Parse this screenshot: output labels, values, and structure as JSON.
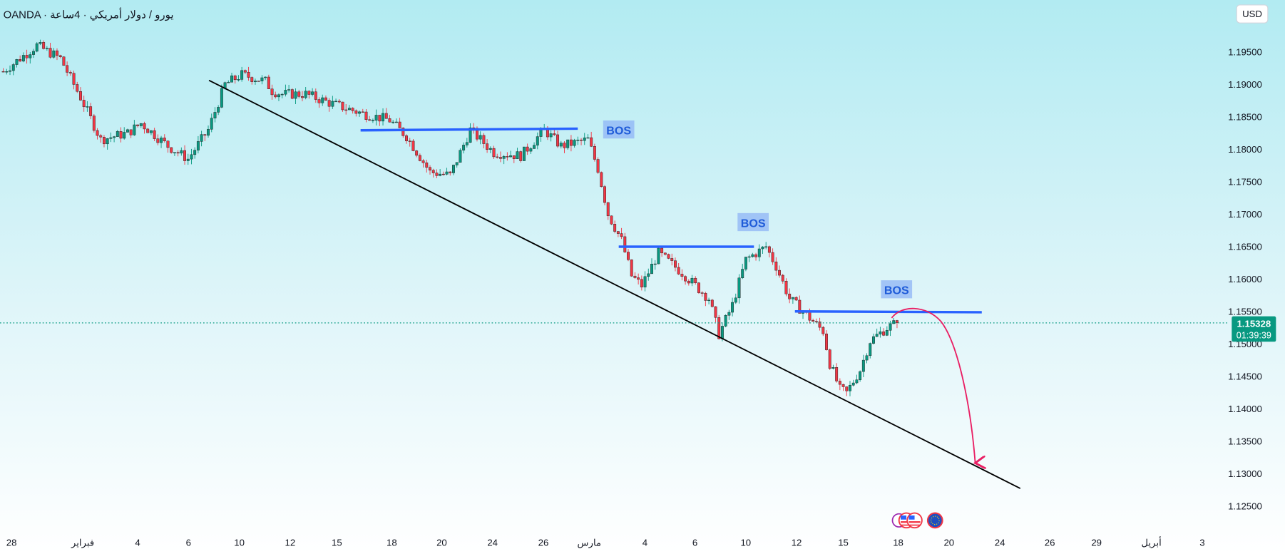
{
  "header": {
    "symbol_title": "OANDA · يورو / دولار أمريكي · 4ساعة"
  },
  "currency_button": "USD",
  "current_price": {
    "value": "1.15328",
    "countdown": "01:39:39",
    "color": "#089981"
  },
  "annotations": {
    "bos_labels": [
      "BOS",
      "BOS",
      "BOS"
    ]
  },
  "colors": {
    "up": "#089981",
    "down": "#f23645",
    "structure_line": "#2962ff",
    "trendline": "#000000",
    "arrow": "#e91e63"
  },
  "icons": [
    "event-icon",
    "us-flag-icon",
    "us-flag-icon",
    "eu-flag-icon"
  ],
  "chart_data": {
    "type": "candlestick",
    "title": "EUR/USD 4H",
    "ylim": [
      1.1225,
      1.2015
    ],
    "y_ticks": [
      "1.19500",
      "1.19000",
      "1.18500",
      "1.18000",
      "1.17500",
      "1.17000",
      "1.16500",
      "1.16000",
      "1.15500",
      "1.15000",
      "1.14500",
      "1.14000",
      "1.13500",
      "1.13000",
      "1.12500"
    ],
    "x_ticks": [
      "28",
      "فبراير",
      "4",
      "6",
      "10",
      "12",
      "15",
      "18",
      "20",
      "24",
      "26",
      "مارس",
      "4",
      "6",
      "10",
      "12",
      "15",
      "18",
      "20",
      "24",
      "26",
      "29",
      "أبريل",
      "3"
    ],
    "price_path": [
      [
        0,
        1.192
      ],
      [
        10,
        1.196
      ],
      [
        17,
        1.194
      ],
      [
        23,
        1.188
      ],
      [
        29,
        1.1815
      ],
      [
        37,
        1.1825
      ],
      [
        41,
        1.184
      ],
      [
        49,
        1.1805
      ],
      [
        55,
        1.1785
      ],
      [
        61,
        1.183
      ],
      [
        66,
        1.19
      ],
      [
        71,
        1.1915
      ],
      [
        78,
        1.1905
      ],
      [
        80,
        1.189
      ],
      [
        83,
        1.1885
      ],
      [
        90,
        1.1885
      ],
      [
        98,
        1.187
      ],
      [
        107,
        1.1855
      ],
      [
        115,
        1.1845
      ],
      [
        120,
        1.182
      ],
      [
        127,
        1.1765
      ],
      [
        133,
        1.176
      ],
      [
        139,
        1.183
      ],
      [
        146,
        1.1795
      ],
      [
        154,
        1.179
      ],
      [
        161,
        1.183
      ],
      [
        166,
        1.1805
      ],
      [
        174,
        1.1815
      ],
      [
        177,
        1.177
      ],
      [
        180,
        1.17
      ],
      [
        184,
        1.166
      ],
      [
        187,
        1.1605
      ],
      [
        190,
        1.159
      ],
      [
        195,
        1.164
      ],
      [
        202,
        1.161
      ],
      [
        210,
        1.157
      ],
      [
        213,
        1.1515
      ],
      [
        217,
        1.156
      ],
      [
        221,
        1.163
      ],
      [
        227,
        1.165
      ],
      [
        230,
        1.162
      ],
      [
        234,
        1.157
      ],
      [
        239,
        1.1545
      ],
      [
        244,
        1.152
      ],
      [
        246,
        1.147
      ],
      [
        249,
        1.143
      ],
      [
        251,
        1.1425
      ],
      [
        255,
        1.146
      ],
      [
        258,
        1.1505
      ],
      [
        263,
        1.1525
      ],
      [
        266,
        1.15328
      ]
    ],
    "structure_levels": [
      1.1832,
      1.165,
      1.155
    ],
    "trendline": {
      "from": [
        62,
        1.1906
      ],
      "to": [
        303,
        1.1277
      ]
    }
  }
}
